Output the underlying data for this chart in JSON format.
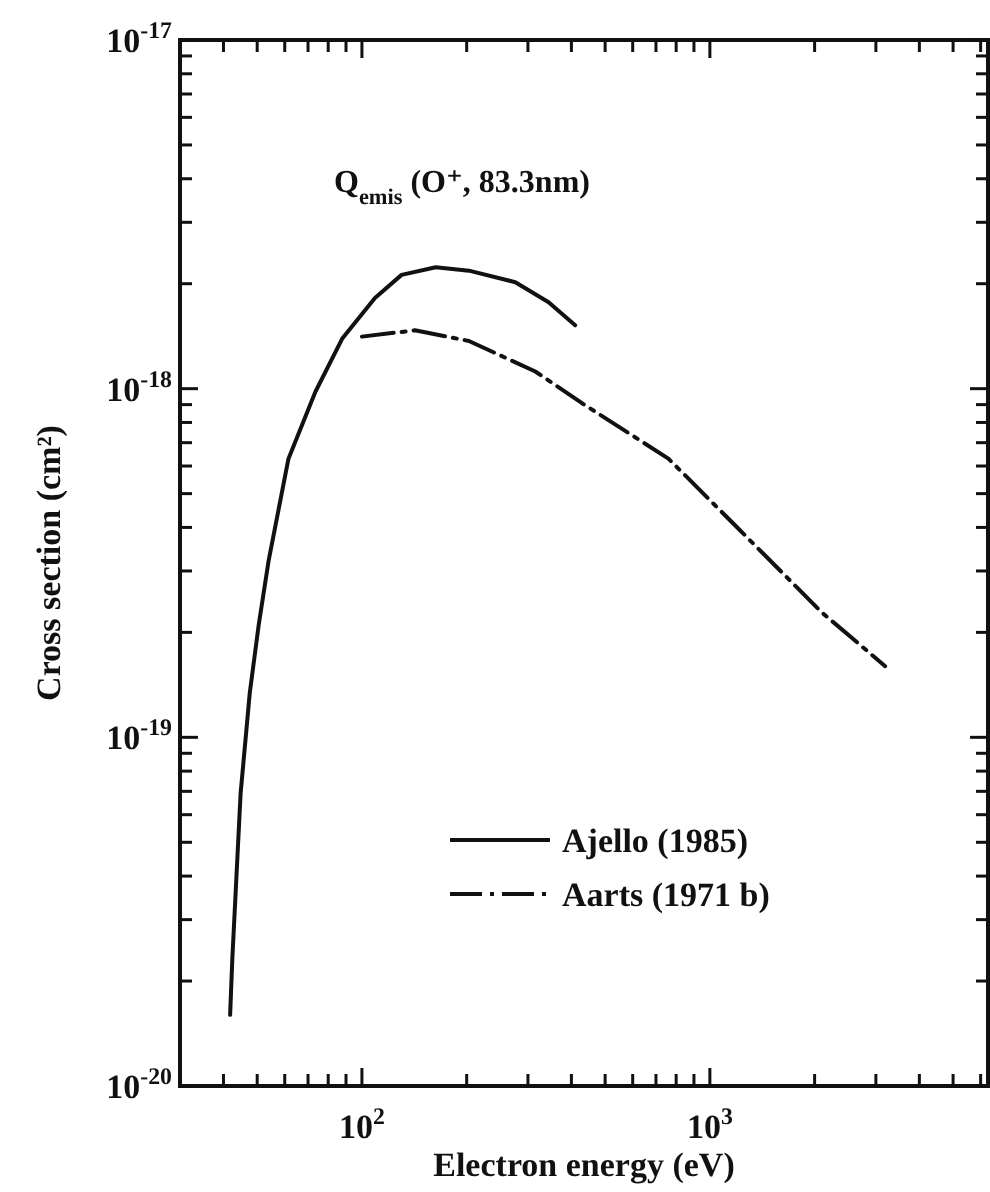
{
  "chart_data": {
    "type": "line",
    "title": "Q$_{emis}$ (O⁺, 83.3nm)",
    "xlabel": "Electron energy (eV)",
    "ylabel": "Cross section (cm²)",
    "log": "xy",
    "xlim": [
      30,
      6300
    ],
    "ylim": [
      1e-20,
      1e-17
    ],
    "xticks": [
      {
        "value": 30,
        "label": null
      },
      {
        "value": 40,
        "label": null
      },
      {
        "value": 50,
        "label": null
      },
      {
        "value": 60,
        "label": null
      },
      {
        "value": 70,
        "label": null
      },
      {
        "value": 80,
        "label": null
      },
      {
        "value": 90,
        "label": null
      },
      {
        "value": 100,
        "label": "10$^{2}$"
      },
      {
        "value": 200,
        "label": null
      },
      {
        "value": 300,
        "label": null
      },
      {
        "value": 400,
        "label": null
      },
      {
        "value": 500,
        "label": null
      },
      {
        "value": 600,
        "label": null
      },
      {
        "value": 700,
        "label": null
      },
      {
        "value": 800,
        "label": null
      },
      {
        "value": 900,
        "label": null
      },
      {
        "value": 1000,
        "label": "10$^{3}$"
      },
      {
        "value": 2000,
        "label": null
      },
      {
        "value": 3000,
        "label": null
      },
      {
        "value": 4000,
        "label": null
      },
      {
        "value": 5000,
        "label": null
      },
      {
        "value": 6000,
        "label": null
      }
    ],
    "yticks": [
      {
        "value": 1e-20,
        "label": "10$^{-20}$"
      },
      {
        "value": 2e-20,
        "label": null
      },
      {
        "value": 3e-20,
        "label": null
      },
      {
        "value": 4e-20,
        "label": null
      },
      {
        "value": 5e-20,
        "label": null
      },
      {
        "value": 6e-20,
        "label": null
      },
      {
        "value": 7e-20,
        "label": null
      },
      {
        "value": 8e-20,
        "label": null
      },
      {
        "value": 9e-20,
        "label": null
      },
      {
        "value": 1e-19,
        "label": "10$^{-19}$"
      },
      {
        "value": 2e-19,
        "label": null
      },
      {
        "value": 3e-19,
        "label": null
      },
      {
        "value": 4e-19,
        "label": null
      },
      {
        "value": 5e-19,
        "label": null
      },
      {
        "value": 6e-19,
        "label": null
      },
      {
        "value": 7e-19,
        "label": null
      },
      {
        "value": 8e-19,
        "label": null
      },
      {
        "value": 9e-19,
        "label": null
      },
      {
        "value": 1e-18,
        "label": "10$^{-18}$"
      },
      {
        "value": 2e-18,
        "label": null
      },
      {
        "value": 3e-18,
        "label": null
      },
      {
        "value": 4e-18,
        "label": null
      },
      {
        "value": 5e-18,
        "label": null
      },
      {
        "value": 6e-18,
        "label": null
      },
      {
        "value": 7e-18,
        "label": null
      },
      {
        "value": 8e-18,
        "label": null
      },
      {
        "value": 9e-18,
        "label": null
      },
      {
        "value": 1e-17,
        "label": "10$^{-17}$"
      }
    ],
    "grid": false,
    "legend": "bottom right",
    "marker": "none",
    "series": [
      {
        "name": "Ajello (1985)",
        "color": "#111111",
        "line_style": "solid",
        "x": [
          41.8,
          42.4,
          44.8,
          47.6,
          50.5,
          53.9,
          61.5,
          73.5,
          87.7,
          109,
          130,
          163,
          203,
          276,
          344,
          410
        ],
        "values": [
          1.6e-20,
          2.3e-20,
          6.9e-20,
          1.34e-19,
          2.1e-19,
          3.2e-19,
          6.3e-19,
          9.8e-19,
          1.39e-18,
          1.82e-18,
          2.12e-18,
          2.23e-18,
          2.18e-18,
          2.02e-18,
          1.77e-18,
          1.52e-18
        ]
      },
      {
        "name": "Aarts (1971 b)",
        "color": "#111111",
        "line_style": "dashed",
        "x": [
          100,
          142,
          203,
          315,
          428,
          760,
          1183,
          2099,
          3190
        ],
        "values": [
          1.41e-18,
          1.47e-18,
          1.37e-18,
          1.12e-18,
          9.1e-19,
          6.3e-19,
          4.05e-19,
          2.28e-19,
          1.6e-19
        ]
      }
    ]
  }
}
